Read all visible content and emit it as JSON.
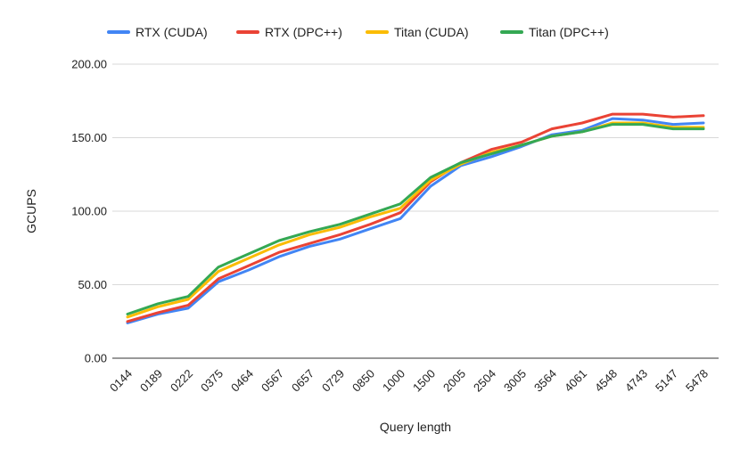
{
  "chart_data": {
    "type": "line",
    "title": "",
    "xlabel": "Query length",
    "ylabel": "GCUPS",
    "ylim": [
      0,
      200
    ],
    "yticks": [
      "0.00",
      "50.00",
      "100.00",
      "150.00",
      "200.00"
    ],
    "ytick_values": [
      0,
      50,
      100,
      150,
      200
    ],
    "grid": "horizontal",
    "legend_position": "top",
    "categories": [
      "0144",
      "0189",
      "0222",
      "0375",
      "0464",
      "0567",
      "0657",
      "0729",
      "0850",
      "1000",
      "1500",
      "2005",
      "2504",
      "3005",
      "3564",
      "4061",
      "4548",
      "4743",
      "5147",
      "5478"
    ],
    "series": [
      {
        "name": "RTX (CUDA)",
        "color": "#4285F4",
        "values": [
          24,
          30,
          34,
          52,
          60,
          69,
          76,
          81,
          88,
          95,
          117,
          131,
          137,
          144,
          152,
          155,
          163,
          162,
          159,
          160
        ]
      },
      {
        "name": "RTX (DPC++)",
        "color": "#EA4335",
        "values": [
          25,
          31,
          36,
          54,
          63,
          72,
          78,
          84,
          91,
          99,
          120,
          133,
          142,
          147,
          156,
          160,
          166,
          166,
          164,
          165
        ]
      },
      {
        "name": "Titan (CUDA)",
        "color": "#FBBC04",
        "values": [
          28,
          35,
          40,
          59,
          68,
          77,
          84,
          89,
          96,
          102,
          121,
          132,
          140,
          145,
          151,
          154,
          160,
          160,
          157,
          157
        ]
      },
      {
        "name": "Titan (DPC++)",
        "color": "#34A853",
        "values": [
          30,
          37,
          42,
          62,
          71,
          80,
          86,
          91,
          98,
          105,
          123,
          133,
          139,
          145,
          151,
          154,
          159,
          159,
          156,
          156
        ]
      }
    ]
  }
}
